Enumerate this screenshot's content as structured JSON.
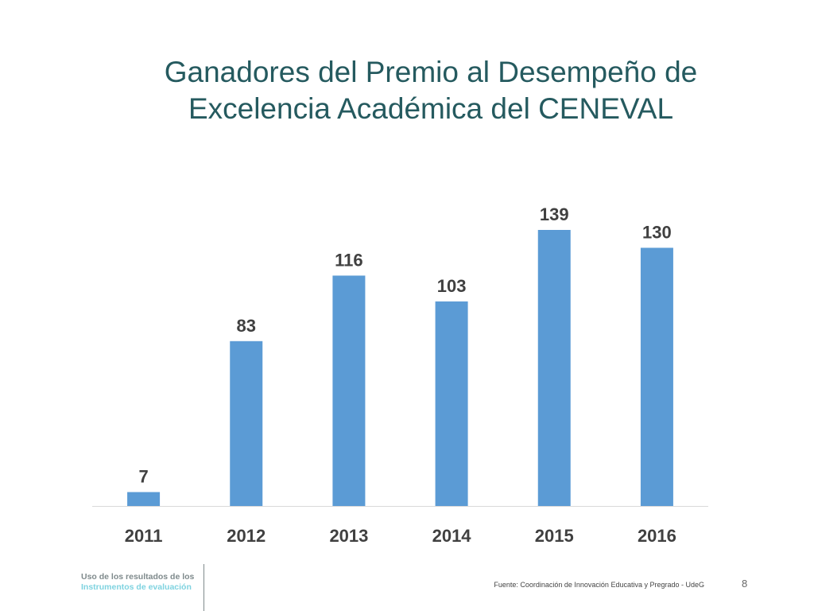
{
  "title": {
    "line1": "Ganadores del Premio al Desempeño de",
    "line2": "Excelencia Académica del CENEVAL"
  },
  "chart_data": {
    "type": "bar",
    "title": "",
    "categories": [
      "2011",
      "2012",
      "2013",
      "2014",
      "2015",
      "2016"
    ],
    "values": [
      7,
      83,
      116,
      103,
      139,
      130
    ],
    "data_labels": [
      "7",
      "83",
      "116",
      "103",
      "139",
      "130"
    ],
    "bar_color": "#5b9bd5",
    "ylim": [
      0,
      139
    ],
    "grid": false,
    "legend": "none"
  },
  "footer": {
    "brand_line1": "Uso de los resultados de los",
    "brand_line2": "Instrumentos de evaluación",
    "source": "Fuente: Coordinación de Innovación Educativa y Pregrado - UdeG",
    "page_number": "8"
  },
  "colors": {
    "title": "#255a5f",
    "bar": "#5b9bd5",
    "label_text": "#404040",
    "brand_gray": "#7f8a8c",
    "brand_teal": "#7fd3e0"
  }
}
